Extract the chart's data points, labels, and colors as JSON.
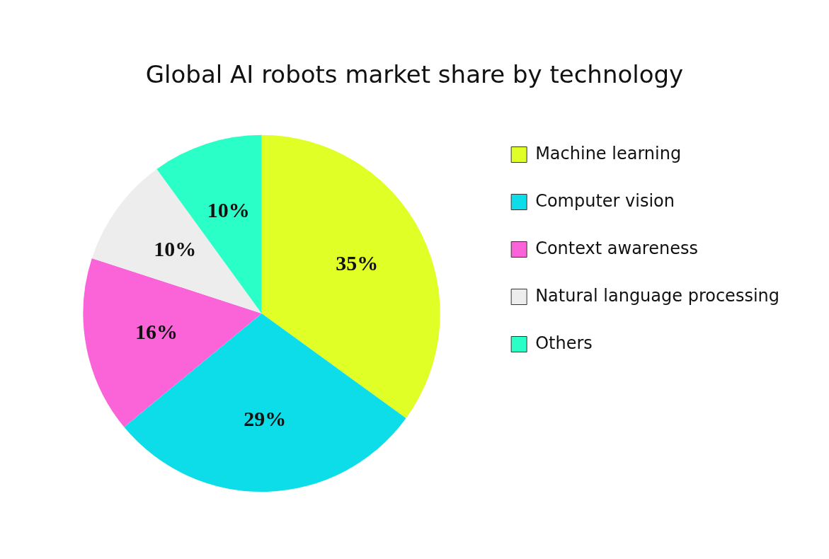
{
  "chart_data": {
    "type": "pie",
    "title": "Global AI robots market share by technology",
    "categories": [
      "Machine learning",
      "Computer vision",
      "Context awareness",
      "Natural language processing",
      "Others"
    ],
    "values": [
      35,
      29,
      16,
      10,
      10
    ],
    "value_labels": [
      "35%",
      "29%",
      "16%",
      "10%",
      "10%"
    ],
    "colors": [
      "#e0ff26",
      "#0cdde8",
      "#fb64d8",
      "#ededed",
      "#29ffc6"
    ],
    "legend": "right"
  }
}
